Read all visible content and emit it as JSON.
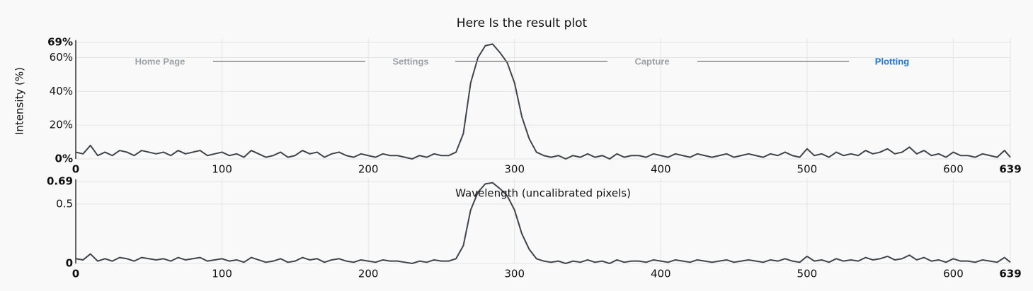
{
  "nav": {
    "steps": [
      "Home Page",
      "Settings",
      "Capture",
      "Plotting"
    ]
  },
  "chart_data": [
    {
      "type": "line",
      "title": "Here Is the result plot",
      "ylabel": "Intensity (%)",
      "xlabel": "Wavelength (uncalibrated pixels)",
      "color": "#3f434a",
      "x": [
        0,
        5,
        10,
        15,
        20,
        25,
        30,
        35,
        40,
        45,
        50,
        55,
        60,
        65,
        70,
        75,
        80,
        85,
        90,
        95,
        100,
        105,
        110,
        115,
        120,
        125,
        130,
        135,
        140,
        145,
        150,
        155,
        160,
        165,
        170,
        175,
        180,
        185,
        190,
        195,
        200,
        205,
        210,
        215,
        220,
        225,
        230,
        235,
        240,
        245,
        250,
        255,
        260,
        265,
        270,
        275,
        280,
        285,
        290,
        295,
        300,
        305,
        310,
        315,
        320,
        325,
        330,
        335,
        340,
        345,
        350,
        355,
        360,
        365,
        370,
        375,
        380,
        385,
        390,
        395,
        400,
        405,
        410,
        415,
        420,
        425,
        430,
        435,
        440,
        445,
        450,
        455,
        460,
        465,
        470,
        475,
        480,
        485,
        490,
        495,
        500,
        505,
        510,
        515,
        520,
        525,
        530,
        535,
        540,
        545,
        550,
        555,
        560,
        565,
        570,
        575,
        580,
        585,
        590,
        595,
        600,
        605,
        610,
        615,
        620,
        625,
        630,
        635,
        639
      ],
      "values": [
        4,
        3,
        8,
        2,
        4,
        2,
        5,
        4,
        2,
        5,
        4,
        3,
        4,
        2,
        5,
        3,
        4,
        5,
        2,
        3,
        4,
        2,
        3,
        1,
        5,
        3,
        1,
        2,
        4,
        1,
        2,
        5,
        3,
        4,
        1,
        3,
        4,
        2,
        1,
        3,
        2,
        1,
        3,
        2,
        2,
        1,
        0,
        2,
        1,
        3,
        2,
        2,
        4,
        15,
        45,
        60,
        67,
        68,
        63,
        57,
        45,
        25,
        12,
        4,
        2,
        1,
        2,
        0,
        2,
        1,
        3,
        1,
        2,
        0,
        3,
        1,
        2,
        2,
        1,
        3,
        2,
        1,
        3,
        2,
        1,
        3,
        2,
        1,
        2,
        3,
        1,
        2,
        3,
        2,
        1,
        3,
        2,
        4,
        2,
        1,
        6,
        2,
        3,
        1,
        4,
        2,
        3,
        2,
        5,
        3,
        4,
        6,
        3,
        4,
        7,
        3,
        5,
        2,
        3,
        1,
        4,
        2,
        2,
        1,
        3,
        2,
        1,
        5,
        1
      ],
      "xlim": [
        0,
        639
      ],
      "xticks": [
        0,
        100,
        200,
        300,
        400,
        500,
        600,
        639
      ],
      "ylim": [
        0,
        69
      ],
      "yticks": [
        {
          "value": 0,
          "label": "0%"
        },
        {
          "value": 20,
          "label": "20%"
        },
        {
          "value": 40,
          "label": "40%"
        },
        {
          "value": 60,
          "label": "60%"
        },
        {
          "value": 69,
          "label": "69%"
        }
      ],
      "grid": true
    },
    {
      "type": "line",
      "color": "#3f434a",
      "x": [
        0,
        5,
        10,
        15,
        20,
        25,
        30,
        35,
        40,
        45,
        50,
        55,
        60,
        65,
        70,
        75,
        80,
        85,
        90,
        95,
        100,
        105,
        110,
        115,
        120,
        125,
        130,
        135,
        140,
        145,
        150,
        155,
        160,
        165,
        170,
        175,
        180,
        185,
        190,
        195,
        200,
        205,
        210,
        215,
        220,
        225,
        230,
        235,
        240,
        245,
        250,
        255,
        260,
        265,
        270,
        275,
        280,
        285,
        290,
        295,
        300,
        305,
        310,
        315,
        320,
        325,
        330,
        335,
        340,
        345,
        350,
        355,
        360,
        365,
        370,
        375,
        380,
        385,
        390,
        395,
        400,
        405,
        410,
        415,
        420,
        425,
        430,
        435,
        440,
        445,
        450,
        455,
        460,
        465,
        470,
        475,
        480,
        485,
        490,
        495,
        500,
        505,
        510,
        515,
        520,
        525,
        530,
        535,
        540,
        545,
        550,
        555,
        560,
        565,
        570,
        575,
        580,
        585,
        590,
        595,
        600,
        605,
        610,
        615,
        620,
        625,
        630,
        635,
        639
      ],
      "values": [
        0.04,
        0.03,
        0.08,
        0.02,
        0.04,
        0.02,
        0.05,
        0.04,
        0.02,
        0.05,
        0.04,
        0.03,
        0.04,
        0.02,
        0.05,
        0.03,
        0.04,
        0.05,
        0.02,
        0.03,
        0.04,
        0.02,
        0.03,
        0.01,
        0.05,
        0.03,
        0.01,
        0.02,
        0.04,
        0.01,
        0.02,
        0.05,
        0.03,
        0.04,
        0.01,
        0.03,
        0.04,
        0.02,
        0.01,
        0.03,
        0.02,
        0.01,
        0.03,
        0.02,
        0.02,
        0.01,
        0,
        0.02,
        0.01,
        0.03,
        0.02,
        0.02,
        0.04,
        0.15,
        0.45,
        0.6,
        0.67,
        0.68,
        0.63,
        0.57,
        0.45,
        0.25,
        0.12,
        0.04,
        0.02,
        0.01,
        0.02,
        0,
        0.02,
        0.01,
        0.03,
        0.01,
        0.02,
        0,
        0.03,
        0.01,
        0.02,
        0.02,
        0.01,
        0.03,
        0.02,
        0.01,
        0.03,
        0.02,
        0.01,
        0.03,
        0.02,
        0.01,
        0.02,
        0.03,
        0.01,
        0.02,
        0.03,
        0.02,
        0.01,
        0.03,
        0.02,
        0.04,
        0.02,
        0.01,
        0.06,
        0.02,
        0.03,
        0.01,
        0.04,
        0.02,
        0.03,
        0.02,
        0.05,
        0.03,
        0.04,
        0.06,
        0.03,
        0.04,
        0.07,
        0.03,
        0.05,
        0.02,
        0.03,
        0.01,
        0.04,
        0.02,
        0.02,
        0.01,
        0.03,
        0.02,
        0.01,
        0.05,
        0.01
      ],
      "xlim": [
        0,
        639
      ],
      "xticks": [
        0,
        100,
        200,
        300,
        400,
        500,
        600,
        639
      ],
      "ylim": [
        0,
        0.69
      ],
      "yticks": [
        0,
        0.5,
        0.69
      ],
      "grid": true
    }
  ]
}
